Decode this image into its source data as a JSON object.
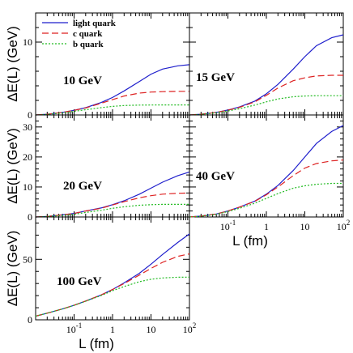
{
  "chart_data": {
    "type": "line",
    "x_scale": "log",
    "xlabel": "L (fm)",
    "ylabel": "ΔE(L) (GeV)",
    "x_tick_labels": [
      {
        "value": 0.1,
        "base": "10",
        "exp": "-1"
      },
      {
        "value": 1,
        "base": "1",
        "exp": ""
      },
      {
        "value": 10,
        "base": "10",
        "exp": ""
      },
      {
        "value": 100,
        "base": "10",
        "exp": "2"
      }
    ],
    "legend": {
      "placement": "top-left",
      "entries": [
        {
          "label": "light quark",
          "color": "#1f1fcc",
          "dash": "solid"
        },
        {
          "label": "c quark",
          "color": "#dd2222",
          "dash": "dashed"
        },
        {
          "label": "b quark",
          "color": "#22bb22",
          "dash": "dotted"
        }
      ]
    },
    "x": [
      0.01,
      0.02,
      0.05,
      0.1,
      0.2,
      0.5,
      1,
      2,
      5,
      10,
      20,
      50,
      100
    ],
    "panels": [
      {
        "label": "10 GeV",
        "ylim": [
          0,
          14
        ],
        "yticks": [
          0,
          10
        ],
        "series": [
          {
            "name": "light quark",
            "values": [
              0.0,
              0.1,
              0.35,
              0.65,
              1.0,
              1.7,
              2.4,
              3.3,
              4.6,
              5.6,
              6.3,
              6.75,
              6.9
            ]
          },
          {
            "name": "c quark",
            "values": [
              0.0,
              0.1,
              0.35,
              0.63,
              0.97,
              1.6,
              2.1,
              2.6,
              3.0,
              3.15,
              3.2,
              3.25,
              3.25
            ]
          },
          {
            "name": "b quark",
            "values": [
              0.0,
              0.08,
              0.28,
              0.5,
              0.72,
              1.0,
              1.18,
              1.3,
              1.35,
              1.37,
              1.38,
              1.38,
              1.38
            ]
          }
        ]
      },
      {
        "label": "15 GeV",
        "ylim": [
          0,
          14
        ],
        "yticks": [
          0,
          10
        ],
        "series": [
          {
            "name": "light quark",
            "values": [
              0.0,
              0.1,
              0.35,
              0.68,
              1.1,
              1.9,
              2.9,
              4.2,
              6.3,
              8.0,
              9.5,
              10.6,
              11.0
            ]
          },
          {
            "name": "c quark",
            "values": [
              0.0,
              0.1,
              0.35,
              0.66,
              1.05,
              1.8,
              2.7,
              3.7,
              4.7,
              5.1,
              5.35,
              5.45,
              5.45
            ]
          },
          {
            "name": "b quark",
            "values": [
              0.0,
              0.08,
              0.3,
              0.55,
              0.85,
              1.35,
              1.8,
              2.2,
              2.5,
              2.6,
              2.65,
              2.65,
              2.65
            ]
          }
        ]
      },
      {
        "label": "20 GeV",
        "ylim": [
          0,
          34
        ],
        "yticks": [
          0,
          10,
          20,
          30
        ],
        "series": [
          {
            "name": "light quark",
            "values": [
              0.0,
              0.2,
              0.7,
              1.2,
              2.0,
              3.0,
              4.1,
              5.4,
              7.6,
              9.6,
              11.6,
              13.8,
              15.0
            ]
          },
          {
            "name": "c quark",
            "values": [
              0.0,
              0.2,
              0.7,
              1.2,
              2.0,
              2.9,
              4.0,
              5.1,
              6.4,
              7.1,
              7.6,
              7.9,
              8.0
            ]
          },
          {
            "name": "b quark",
            "values": [
              0.0,
              0.15,
              0.5,
              0.9,
              1.5,
              2.2,
              2.9,
              3.4,
              3.9,
              4.1,
              4.2,
              4.2,
              4.2
            ]
          }
        ]
      },
      {
        "label": "40 GeV",
        "ylim": [
          0,
          34
        ],
        "yticks": [
          0,
          10,
          20,
          30
        ],
        "series": [
          {
            "name": "light quark",
            "values": [
              0.0,
              0.3,
              1.0,
              2.0,
              3.3,
              5.3,
              7.6,
              10.5,
              15.5,
              20.0,
              24.5,
              28.5,
              30.5
            ]
          },
          {
            "name": "c quark",
            "values": [
              0.0,
              0.3,
              1.0,
              2.0,
              3.3,
              5.2,
              7.4,
              10.0,
              13.8,
              16.3,
              17.8,
              18.7,
              19.0
            ]
          },
          {
            "name": "b quark",
            "values": [
              0.0,
              0.25,
              0.9,
              1.8,
              2.9,
              4.6,
              6.2,
              7.8,
              9.6,
              10.4,
              10.9,
              11.2,
              11.2
            ]
          }
        ]
      },
      {
        "label": "100 GeV",
        "ylim": [
          0,
          85
        ],
        "yticks": [
          0,
          50
        ],
        "series": [
          {
            "name": "light quark",
            "values": [
              3.0,
              5.5,
              9.0,
              12.0,
              15.5,
              20.5,
              25.0,
              30.5,
              38.5,
              46.0,
              54.0,
              64.0,
              71.0
            ]
          },
          {
            "name": "c quark",
            "values": [
              3.0,
              5.5,
              9.0,
              12.0,
              15.5,
              20.5,
              25.0,
              30.0,
              37.0,
              42.5,
              47.5,
              52.5,
              54.5
            ]
          },
          {
            "name": "b quark",
            "values": [
              3.0,
              5.5,
              9.0,
              12.0,
              15.3,
              20.0,
              24.0,
              27.5,
              31.5,
              33.5,
              34.6,
              35.2,
              35.3
            ]
          }
        ]
      }
    ]
  }
}
